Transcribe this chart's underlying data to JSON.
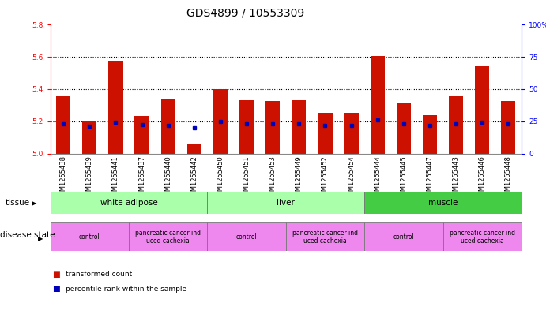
{
  "title": "GDS4899 / 10553309",
  "samples": [
    "GSM1255438",
    "GSM1255439",
    "GSM1255441",
    "GSM1255437",
    "GSM1255440",
    "GSM1255442",
    "GSM1255450",
    "GSM1255451",
    "GSM1255453",
    "GSM1255449",
    "GSM1255452",
    "GSM1255454",
    "GSM1255444",
    "GSM1255445",
    "GSM1255447",
    "GSM1255443",
    "GSM1255446",
    "GSM1255448"
  ],
  "transformed_count": [
    5.355,
    5.198,
    5.575,
    5.235,
    5.335,
    5.055,
    5.4,
    5.33,
    5.325,
    5.33,
    5.255,
    5.255,
    5.605,
    5.31,
    5.24,
    5.355,
    5.54,
    5.325
  ],
  "percentile_rank": [
    5.185,
    5.17,
    5.195,
    5.18,
    5.175,
    5.162,
    5.197,
    5.185,
    5.185,
    5.185,
    5.175,
    5.175,
    5.207,
    5.185,
    5.175,
    5.185,
    5.195,
    5.185
  ],
  "ylim_left": [
    5.0,
    5.8
  ],
  "yticks_left": [
    5.0,
    5.2,
    5.4,
    5.6,
    5.8
  ],
  "yticks_right": [
    0,
    25,
    50,
    75,
    100
  ],
  "ytick_labels_right": [
    "0",
    "25",
    "50",
    "75",
    "100%"
  ],
  "grid_dotted_at": [
    5.2,
    5.4,
    5.6
  ],
  "bar_color": "#cc1100",
  "blue_color": "#0000bb",
  "bar_width": 0.55,
  "tissue_groups": [
    {
      "label": "white adipose",
      "start": 0,
      "end": 6,
      "color": "#aaffaa"
    },
    {
      "label": "liver",
      "start": 6,
      "end": 12,
      "color": "#aaffaa"
    },
    {
      "label": "muscle",
      "start": 12,
      "end": 18,
      "color": "#44cc44"
    }
  ],
  "disease_groups": [
    {
      "label": "control",
      "start": 0,
      "end": 3
    },
    {
      "label": "pancreatic cancer-ind\nuced cachexia",
      "start": 3,
      "end": 6
    },
    {
      "label": "control",
      "start": 6,
      "end": 9
    },
    {
      "label": "pancreatic cancer-ind\nuced cachexia",
      "start": 9,
      "end": 12
    },
    {
      "label": "control",
      "start": 12,
      "end": 15
    },
    {
      "label": "pancreatic cancer-ind\nuced cachexia",
      "start": 15,
      "end": 18
    }
  ],
  "disease_color": "#ee88ee",
  "xtick_bg_color": "#cccccc",
  "title_fontsize": 10,
  "tick_fontsize": 6,
  "label_fontsize": 7.5,
  "tissue_fontsize": 7.5,
  "disease_fontsize": 5.5
}
